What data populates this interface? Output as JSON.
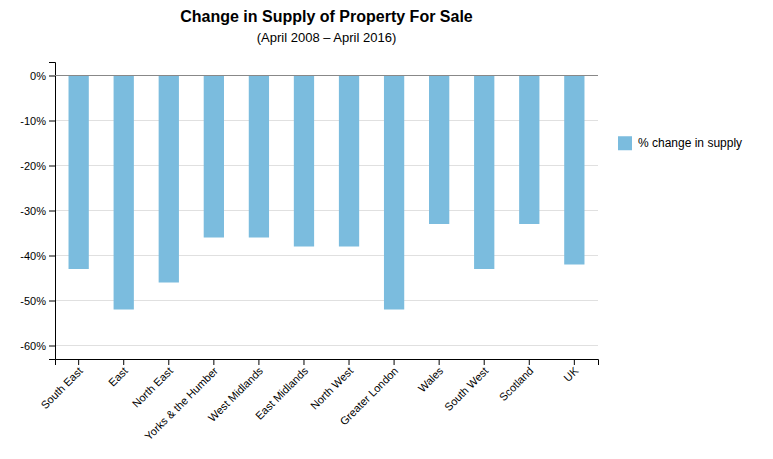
{
  "chart_data": {
    "type": "bar",
    "title": "Change in Supply of Property For Sale",
    "subtitle": "(April 2008 – April 2016)",
    "categories": [
      "South East",
      "East",
      "North East",
      "Yorks & the Humber",
      "West Midlands",
      "East Midlands",
      "North West",
      "Greater London",
      "Wales",
      "South West",
      "Scotland",
      "UK"
    ],
    "series": [
      {
        "name": "% change in supply",
        "color": "#7BBCDE",
        "values": [
          -43,
          -52,
          -46,
          -36,
          -36,
          -38,
          -38,
          -52,
          -33,
          -43,
          -33,
          -42
        ]
      }
    ],
    "ylim": [
      -63,
      3
    ],
    "yticks": [
      {
        "value": 0,
        "label": "0%"
      },
      {
        "value": -10,
        "label": "-10%"
      },
      {
        "value": -20,
        "label": "-20%"
      },
      {
        "value": -30,
        "label": "-30%"
      },
      {
        "value": -40,
        "label": "-40%"
      },
      {
        "value": -50,
        "label": "-50%"
      },
      {
        "value": -60,
        "label": "-60%"
      }
    ],
    "grid": true,
    "legend": "right"
  }
}
